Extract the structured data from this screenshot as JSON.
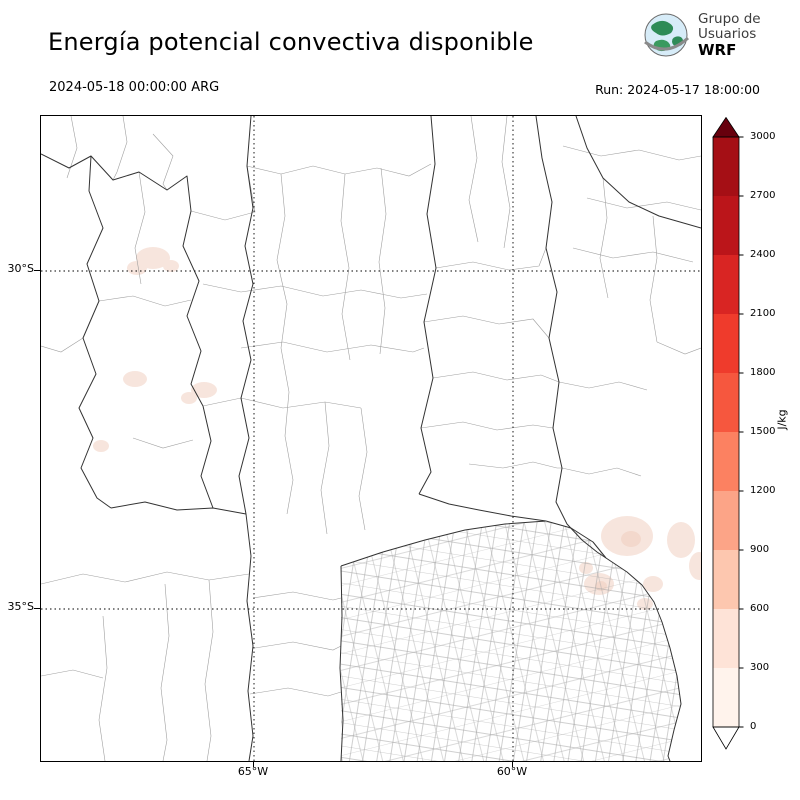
{
  "header": {
    "title": "Energía potencial convectiva disponible",
    "valid_time": "2024-05-18 00:00:00 ARG",
    "run_time": "Run: 2024-05-17 18:00:00",
    "logo": {
      "line1": "Grupo de",
      "line2": "Usuarios",
      "line3": "WRF"
    }
  },
  "map": {
    "lat_ticks": [
      "30°S",
      "35°S"
    ],
    "lon_ticks": [
      "65°W",
      "60°W"
    ]
  },
  "colorbar": {
    "unit": "J/kg",
    "tick_labels": [
      "0",
      "300",
      "600",
      "900",
      "1200",
      "1500",
      "1800",
      "2100",
      "2400",
      "2700",
      "3000"
    ],
    "segment_colors_top_to_bottom": [
      "#a50f15",
      "#bb151a",
      "#d92523",
      "#ef3b2c",
      "#f6573e",
      "#fc8161",
      "#fca487",
      "#fdc7af",
      "#fee3d7",
      "#fff3ec"
    ],
    "over_color": "#67000d",
    "under_color": "#ffffff"
  }
}
